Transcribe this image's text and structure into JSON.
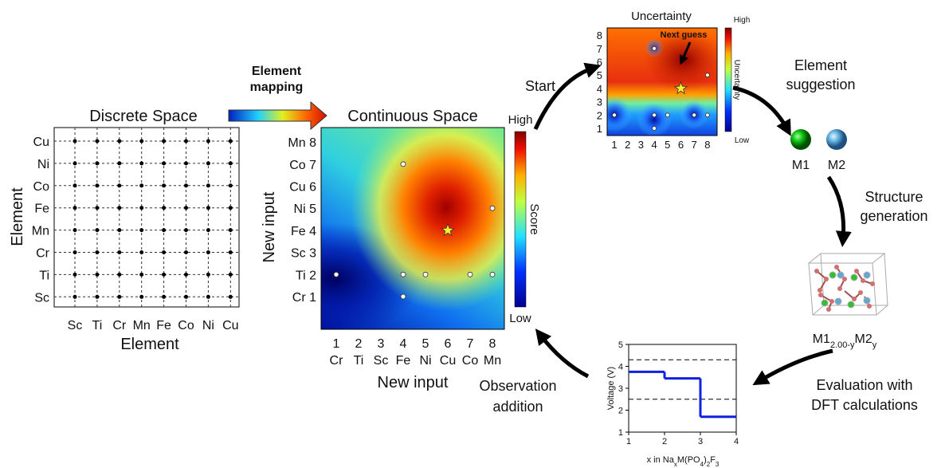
{
  "discrete_space": {
    "title": "Discrete Space",
    "x_label": "Element",
    "y_label": "Element",
    "x_categories": [
      "Sc",
      "Ti",
      "Cr",
      "Mn",
      "Fe",
      "Co",
      "Ni",
      "Cu"
    ],
    "y_categories": [
      "Cu",
      "Ni",
      "Co",
      "Fe",
      "Mn",
      "Cr",
      "Ti",
      "Sc"
    ]
  },
  "mapping_label": [
    "Element",
    "mapping"
  ],
  "continuous_space": {
    "title": "Continuous Space",
    "x_ticks": [
      "1",
      "2",
      "3",
      "4",
      "5",
      "6",
      "7",
      "8"
    ],
    "x_elements": [
      "Cr",
      "Ti",
      "Sc",
      "Fe",
      "Ni",
      "Cu",
      "Co",
      "Mn"
    ],
    "y_ticks": [
      "Mn 8",
      "Co 7",
      "Cu 6",
      "Ni 5",
      "Fe 4",
      "Sc 3",
      "Ti 2",
      "Cr 1"
    ],
    "x_label": "New input",
    "y_label": "New input",
    "colorbar": {
      "high": "High",
      "low": "Low",
      "label": "Score"
    }
  },
  "observations": [
    [
      1,
      2
    ],
    [
      4,
      2
    ],
    [
      5,
      2
    ],
    [
      7,
      2
    ],
    [
      8,
      2
    ],
    [
      4,
      1
    ],
    [
      4,
      7
    ],
    [
      8,
      5
    ]
  ],
  "next_guess": [
    6,
    4
  ],
  "uncertainty_map": {
    "title": "Uncertainty",
    "ticks": [
      "1",
      "2",
      "3",
      "4",
      "5",
      "6",
      "7",
      "8"
    ],
    "annotation": "Next guess",
    "colorbar": {
      "high": "High",
      "low": "Low",
      "label": "Uncertainty"
    }
  },
  "steps": {
    "start": "Start",
    "element_suggestion": [
      "Element",
      "suggestion"
    ],
    "m1": "M1",
    "m2": "M2",
    "structure_generation": [
      "Structure",
      "generation"
    ],
    "formula": [
      "M1",
      "2.00-y",
      "M2",
      "y"
    ],
    "evaluation": [
      "Evaluation with",
      "DFT calculations"
    ],
    "observation_addition": [
      "Observation",
      "addition"
    ]
  },
  "voltage_plot": {
    "y_label": "Voltage (V)",
    "x_label": [
      "x in Na",
      "x",
      "M(PO",
      "4",
      ")",
      "2",
      "F",
      "3"
    ],
    "xlim": [
      1,
      4
    ],
    "ylim": [
      1,
      5
    ],
    "xticks": [
      1,
      2,
      3,
      4
    ],
    "yticks": [
      1,
      2,
      3,
      4,
      5
    ],
    "x_edges": [
      1,
      2,
      3,
      4
    ],
    "voltage": [
      3.75,
      3.45,
      1.7
    ],
    "dashed": [
      4.3,
      2.5
    ]
  }
}
